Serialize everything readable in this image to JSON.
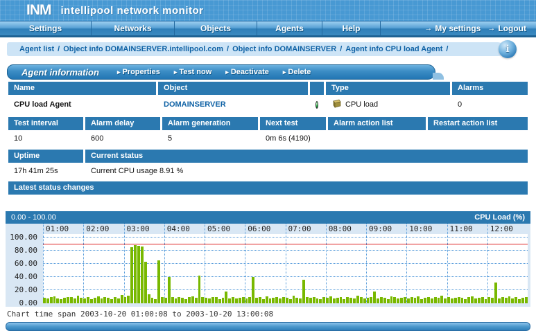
{
  "header": {
    "logo": "INM",
    "title": "intellipool network monitor"
  },
  "nav": {
    "items": [
      "Settings",
      "Networks",
      "Objects",
      "Agents",
      "Help"
    ],
    "right_items": [
      {
        "icon": "arrow-right-icon",
        "glyph": "→",
        "label": "My settings"
      },
      {
        "icon": "arrow-right-icon",
        "glyph": "→",
        "label": "Logout"
      }
    ]
  },
  "breadcrumb": {
    "items": [
      "Agent list",
      "Object info DOMAINSERVER.intellipool.com",
      "Object info DOMAINSERVER",
      "Agent info CPU load Agent"
    ],
    "separator": "/",
    "trailing": "/",
    "info_icon_glyph": "i"
  },
  "section": {
    "title": "Agent information",
    "action_marker": "▸",
    "actions": [
      "Properties",
      "Test now",
      "Deactivate",
      "Delete"
    ]
  },
  "tables": {
    "t1": {
      "headers": [
        "Name",
        "Object",
        "",
        "Type",
        "Alarms"
      ],
      "row": {
        "name": "CPU load Agent",
        "object": "DOMAINSERVER",
        "status_led": "green",
        "type": "CPU load",
        "alarms": "0"
      }
    },
    "t2": {
      "headers": [
        "Test interval",
        "Alarm delay",
        "Alarm generation",
        "Next test",
        "Alarm action list",
        "Restart action list"
      ],
      "row": [
        "10",
        "600",
        "5",
        "0m 6s (4190)",
        "",
        ""
      ]
    },
    "t3": {
      "headers": [
        "Uptime",
        "Current status"
      ],
      "row": [
        "17h 41m 25s",
        "Current CPU usage 8.91 %"
      ]
    },
    "latest_status_header": "Latest status changes"
  },
  "chart_data": {
    "type": "bar",
    "title_left": "0.00 - 100.00",
    "title_right": "CPU Load (%)",
    "ylabel": "CPU Load (%)",
    "ylim": [
      0,
      100
    ],
    "y_ticks": [
      100,
      80,
      60,
      40,
      20,
      0
    ],
    "y_tick_labels": [
      "100.00",
      "80.00",
      "60.00",
      "40.00",
      "20.00",
      "0.00"
    ],
    "x_tick_labels": [
      "01:00",
      "02:00",
      "03:00",
      "04:00",
      "05:00",
      "06:00",
      "07:00",
      "08:00",
      "09:00",
      "10:00",
      "11:00",
      "12:00"
    ],
    "threshold_line": 90,
    "grid": true,
    "start": "2003-10-20 01:00:08",
    "end": "2003-10-20 13:00:08",
    "interval_minutes": 5,
    "values": [
      8,
      7,
      9,
      11,
      7,
      6,
      8,
      10,
      9,
      7,
      12,
      8,
      7,
      9,
      6,
      8,
      11,
      7,
      9,
      8,
      6,
      10,
      7,
      13,
      9,
      12,
      85,
      88,
      87,
      86,
      63,
      14,
      8,
      6,
      65,
      9,
      8,
      40,
      9,
      7,
      10,
      8,
      6,
      9,
      11,
      8,
      42,
      9,
      8,
      7,
      10,
      9,
      6,
      8,
      18,
      7,
      9,
      7,
      8,
      10,
      7,
      9,
      40,
      8,
      9,
      6,
      11,
      7,
      8,
      10,
      7,
      9,
      8,
      6,
      12,
      8,
      7,
      36,
      9,
      8,
      10,
      7,
      6,
      9,
      8,
      11,
      7,
      8,
      9,
      6,
      10,
      8,
      7,
      12,
      9,
      7,
      8,
      10,
      18,
      7,
      9,
      8,
      6,
      11,
      9,
      7,
      8,
      10,
      7,
      9,
      8,
      11,
      6,
      8,
      10,
      7,
      9,
      8,
      12,
      7,
      9,
      7,
      8,
      10,
      8,
      6,
      9,
      11,
      7,
      8,
      9,
      6,
      10,
      8,
      32,
      7,
      9,
      8,
      11,
      7,
      9,
      6,
      8,
      9
    ]
  },
  "footer_status": "Chart time span 2003-10-20 01:00:08 to 2003-10-20 13:00:08",
  "colors": {
    "accent": "#2b79b0",
    "nav_dark": "#1c5f93",
    "link": "#0f62a5",
    "bar_green": "#78b800",
    "threshold_red": "#dd2222",
    "chart_bg": "#d9e7f4",
    "breadcrumb_bg": "#cde4f6",
    "grid_dot": "#4f97d9"
  }
}
